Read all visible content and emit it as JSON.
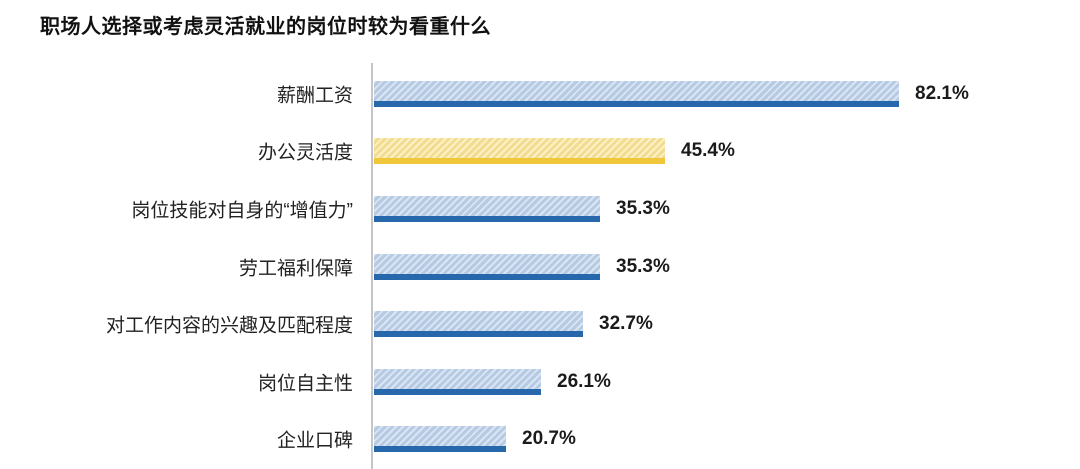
{
  "title": "职场人选择或考虑灵活就业的岗位时较为看重什么",
  "chart_data": {
    "type": "bar",
    "orientation": "horizontal",
    "title": "职场人选择或考虑灵活就业的岗位时较为看重什么",
    "categories": [
      "薪酬工资",
      "办公灵活度",
      "岗位技能对自身的“增值力”",
      "劳工福利保障",
      "对工作内容的兴趣及匹配程度",
      "岗位自主性",
      "企业口碑"
    ],
    "values": [
      82.1,
      45.4,
      35.3,
      35.3,
      32.7,
      26.1,
      20.7
    ],
    "value_labels": [
      "82.1%",
      "45.4%",
      "35.3%",
      "35.3%",
      "32.7%",
      "26.1%",
      "20.7%"
    ],
    "unit": "%",
    "highlighted_index": 1,
    "xlim": [
      0,
      100
    ],
    "grid": false,
    "legend": "none",
    "colors": {
      "bar_fill": "#bcd0ea",
      "bar_border": "#2767ab",
      "highlight_fill": "#fae396",
      "highlight_border": "#f0c63a",
      "axis_line": "#c6c6c6",
      "title_text": "#111111",
      "label_text": "#222222",
      "value_text": "#1b1b1b"
    }
  }
}
